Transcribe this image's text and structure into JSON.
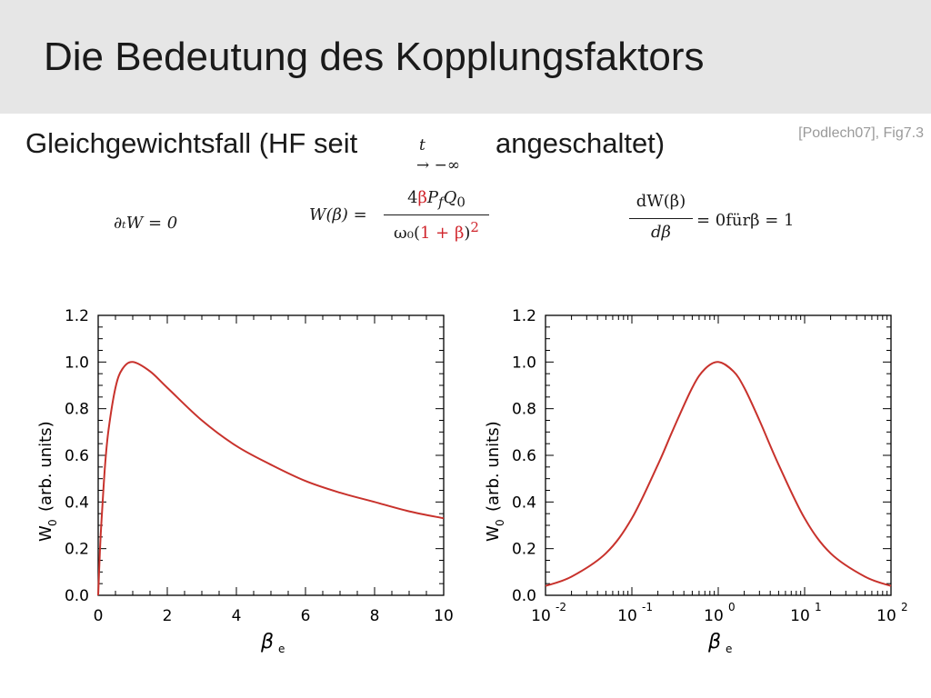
{
  "slide": {
    "title": "Die Bedeutung des Kopplungsfaktors",
    "source": "[Podlech07], Fig7.3",
    "subtitle_left": "Gleichgewichtsfall (HF seit",
    "subtitle_right": "angeschaltet)",
    "limit_var": "t",
    "limit_arrow": "→ −∞"
  },
  "equations": {
    "eq1": "∂ₜW = 0",
    "eq2_lhs": "W(β) =",
    "eq2_num_a": "4",
    "eq2_num_beta": "β",
    "eq2_num_b": "P",
    "eq2_num_sub": "f",
    "eq2_num_c": "Q",
    "eq2_num_sub2": "0",
    "eq2_den_a": "ω₀(",
    "eq2_den_red": "1 + β",
    "eq2_den_close": ")",
    "eq2_den_exp": "2",
    "eq3_num": "dW(β)",
    "eq3_den": "dβ",
    "eq3_rhs": "= 0fürβ = 1"
  },
  "chart_data": [
    {
      "type": "line",
      "xscale": "linear",
      "xlim": [
        0,
        10
      ],
      "ylim": [
        0,
        1.2
      ],
      "xticks": [
        "0",
        "2",
        "4",
        "6",
        "8",
        "10"
      ],
      "yticks": [
        "0.0",
        "0.2",
        "0.4",
        "0.6",
        "0.8",
        "1.0",
        "1.2"
      ],
      "xlabel": "β",
      "xlabel_sub": "e",
      "ylabel": "W",
      "ylabel_sub": "0",
      "ylabel_rest": "(arb. units)",
      "color": "#c8322c",
      "series": [
        {
          "x": [
            0,
            0.05,
            0.1,
            0.2,
            0.3,
            0.5,
            0.7,
            1,
            1.5,
            2,
            3,
            4,
            5,
            6,
            7,
            8,
            9,
            10
          ],
          "y": [
            0,
            0.19,
            0.33,
            0.56,
            0.71,
            0.89,
            0.97,
            1.0,
            0.96,
            0.89,
            0.75,
            0.64,
            0.56,
            0.49,
            0.44,
            0.4,
            0.36,
            0.33
          ]
        }
      ]
    },
    {
      "type": "line",
      "xscale": "log",
      "xlim": [
        0.01,
        100
      ],
      "ylim": [
        0,
        1.2
      ],
      "xticks": [
        "-2",
        "-1",
        "0",
        "1",
        "2"
      ],
      "xtick_base": "10",
      "yticks": [
        "0.0",
        "0.2",
        "0.4",
        "0.6",
        "0.8",
        "1.0",
        "1.2"
      ],
      "xlabel": "β",
      "xlabel_sub": "e",
      "ylabel": "W",
      "ylabel_sub": "0",
      "ylabel_rest": "(arb. units)",
      "color": "#c8322c",
      "series": [
        {
          "x": [
            0.01,
            0.02,
            0.05,
            0.1,
            0.2,
            0.3,
            0.5,
            0.7,
            1,
            1.5,
            2,
            3,
            5,
            10,
            20,
            50,
            100
          ],
          "y": [
            0.04,
            0.08,
            0.18,
            0.33,
            0.56,
            0.71,
            0.89,
            0.97,
            1.0,
            0.96,
            0.89,
            0.75,
            0.56,
            0.33,
            0.18,
            0.08,
            0.04
          ]
        }
      ]
    }
  ]
}
